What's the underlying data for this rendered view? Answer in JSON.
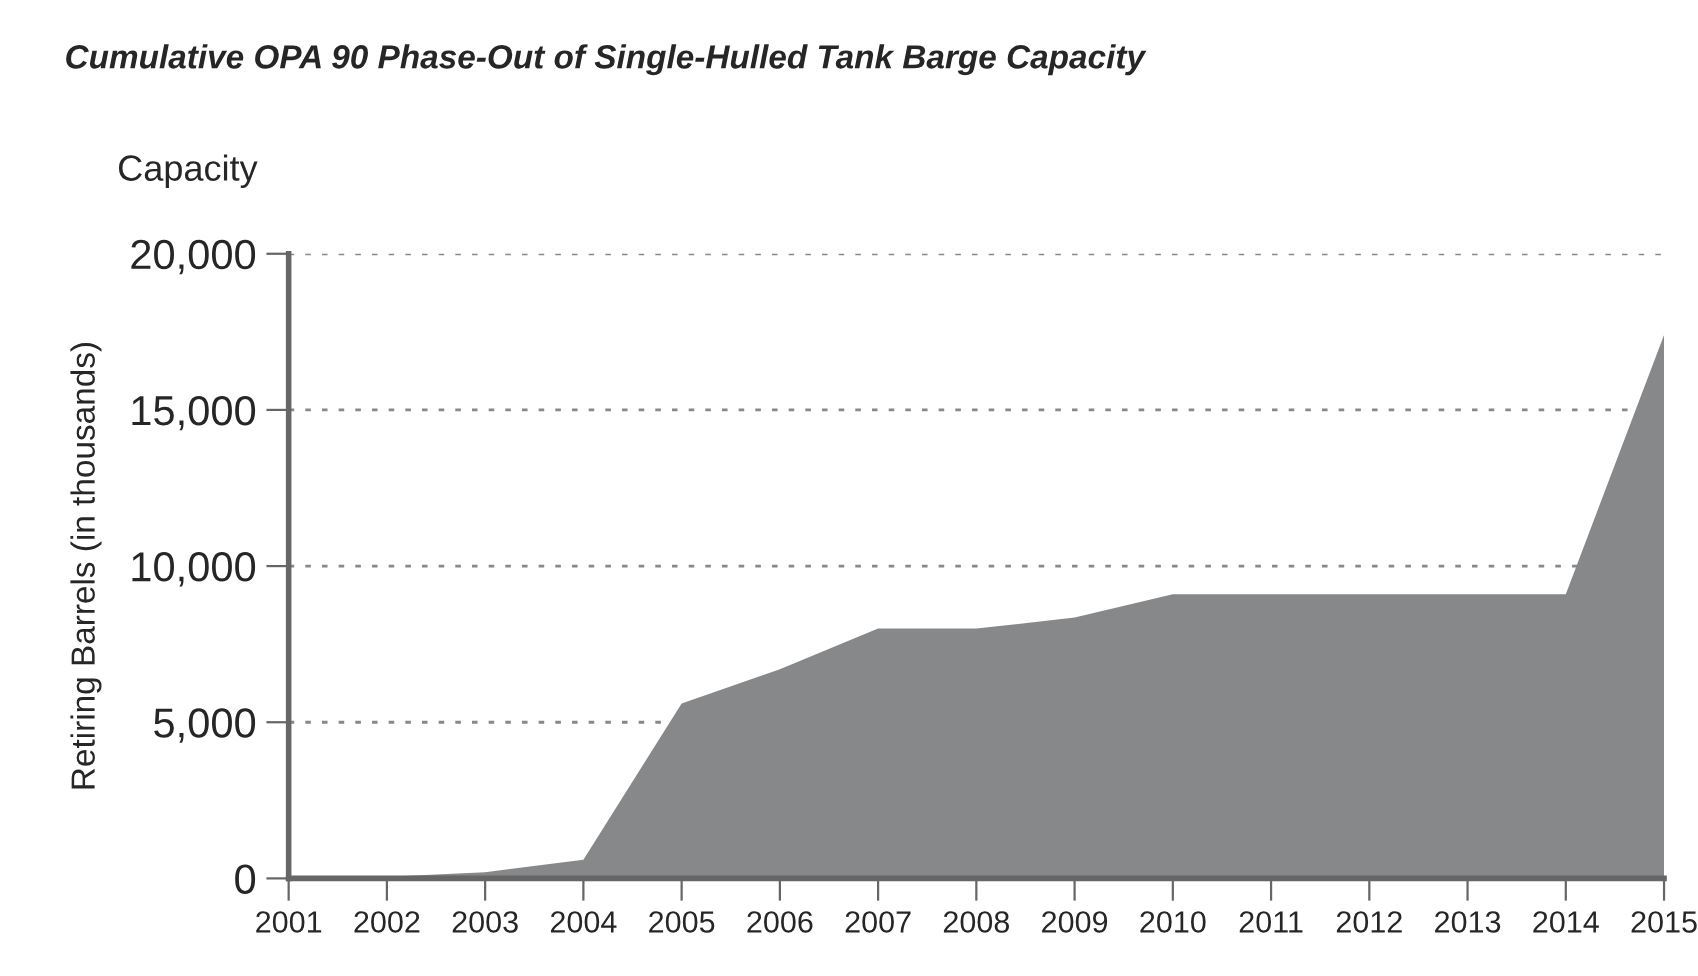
{
  "chart_data": {
    "type": "area",
    "title": "Cumulative OPA 90 Phase-Out of Single-Hulled Tank Barge Capacity",
    "ylabel": "Retiring Barrels (in thousands)",
    "annotations": [
      "Capacity"
    ],
    "categories": [
      "2001",
      "2002",
      "2003",
      "2004",
      "2005",
      "2006",
      "2007",
      "2008",
      "2009",
      "2010",
      "2011",
      "2012",
      "2013",
      "2014",
      "2015"
    ],
    "series": [
      {
        "color": "#87888a",
        "values": [
          0,
          50,
          200,
          600,
          5600,
          6700,
          8000,
          8000,
          8350,
          9100,
          9100,
          9100,
          9100,
          9100,
          17400
        ]
      }
    ],
    "ylim": [
      0,
      20000
    ],
    "yticks": [
      {
        "value": 0,
        "label": "0"
      },
      {
        "value": 5000,
        "label": "5,000"
      },
      {
        "value": 10000,
        "label": "10,000"
      },
      {
        "value": 15000,
        "label": "15,000"
      },
      {
        "value": 20000,
        "label": "20,000"
      }
    ],
    "grid": "y",
    "legend": false
  }
}
